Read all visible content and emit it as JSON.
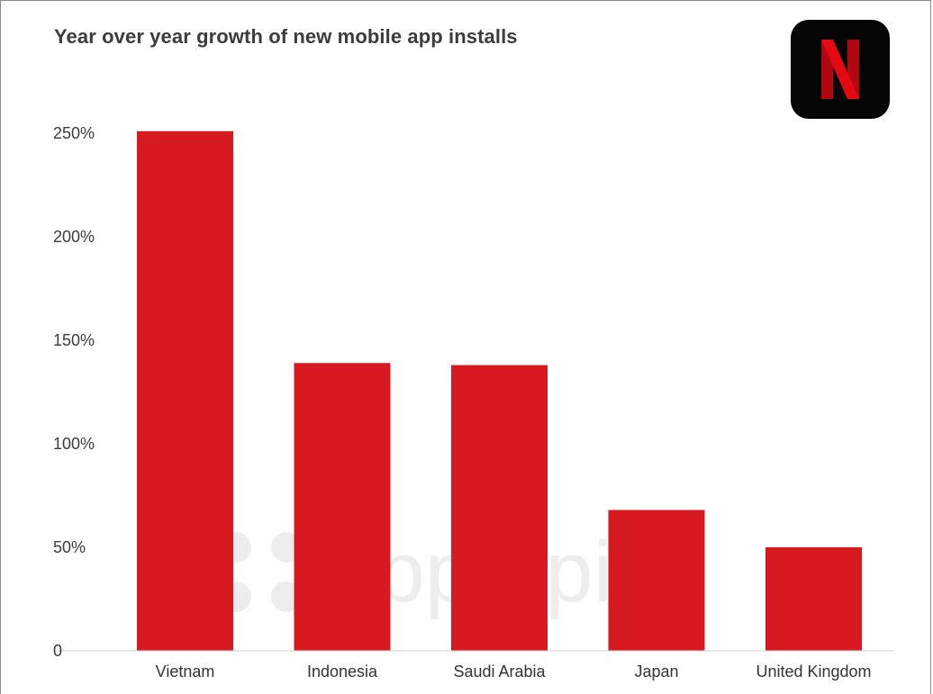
{
  "chart_data": {
    "type": "bar",
    "title": "Year over year growth of new mobile app installs",
    "categories": [
      "Vietnam",
      "Indonesia",
      "Saudi Arabia",
      "Japan",
      "United Kingdom"
    ],
    "values": [
      251,
      139,
      138,
      68,
      50
    ],
    "ylim": [
      0,
      250
    ],
    "yticks": [
      0,
      50,
      100,
      150,
      200,
      250
    ],
    "ytick_labels": [
      "0",
      "50%",
      "100%",
      "150%",
      "200%",
      "250%"
    ],
    "xlabel": "",
    "ylabel": "",
    "grid": false,
    "legend": "none",
    "bar_color": "#d71920"
  },
  "brand": {
    "logo_icon": "netflix-logo-icon",
    "logo_colors": [
      "#050505",
      "#e50914",
      "#b20710"
    ]
  },
  "watermark": {
    "text": "apptopia",
    "color": "#ededed"
  }
}
